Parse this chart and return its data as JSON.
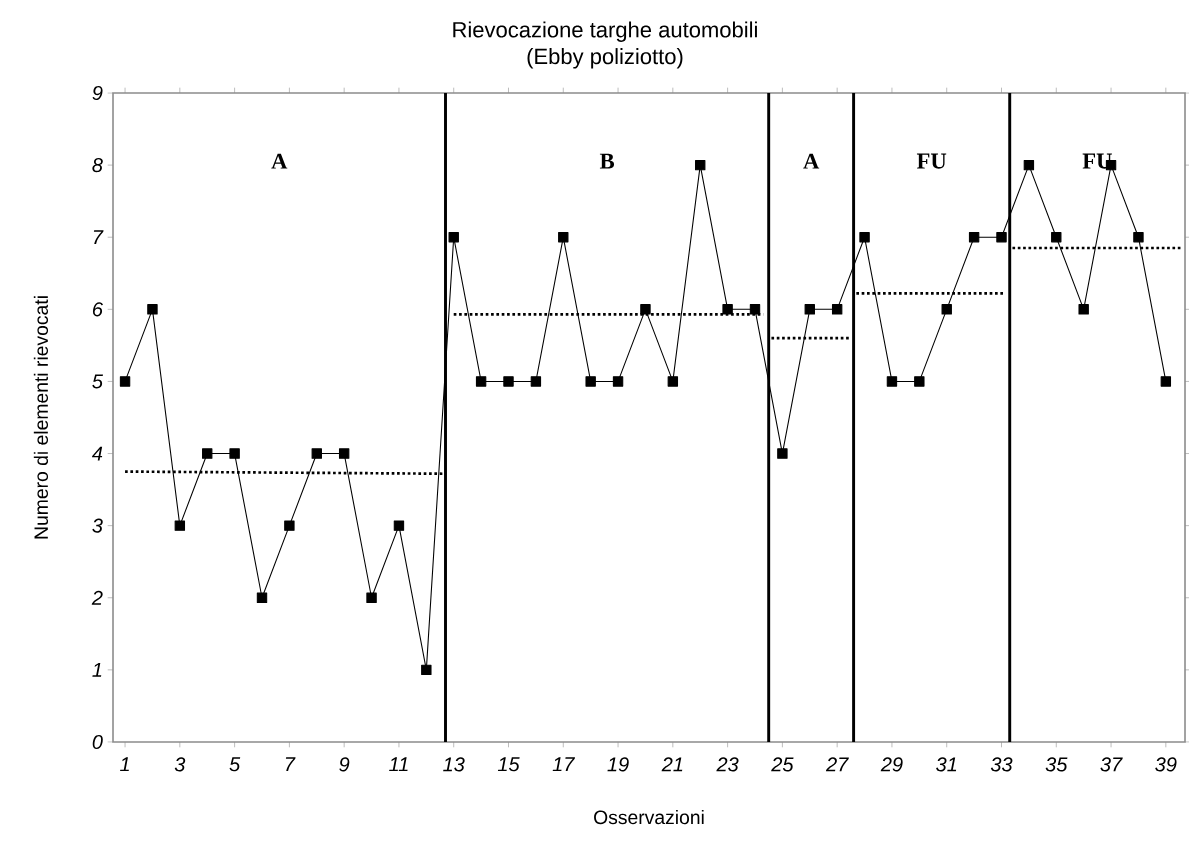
{
  "chart_data": {
    "type": "line",
    "title": "Rievocazione targhe automobili",
    "subtitle": "(Ebby poliziotto)",
    "xlabel": "Osservazioni",
    "ylabel": "Numero di elementi rievocati",
    "xlim": [
      0.56,
      39.7
    ],
    "ylim": [
      0,
      9
    ],
    "xticks": [
      1,
      3,
      5,
      7,
      9,
      11,
      13,
      15,
      17,
      19,
      21,
      23,
      25,
      27,
      29,
      31,
      33,
      35,
      37,
      39
    ],
    "yticks": [
      0,
      1,
      2,
      3,
      4,
      5,
      6,
      7,
      8,
      9
    ],
    "series": [
      {
        "color": "#000000",
        "marker": "square",
        "line_style": "solid",
        "x": [
          1,
          2,
          3,
          4,
          5,
          6,
          7,
          8,
          9,
          10,
          11,
          12,
          13,
          14,
          15,
          16,
          17,
          18,
          19,
          20,
          21,
          22,
          23,
          24,
          25,
          26,
          27,
          28,
          29,
          30,
          31,
          32,
          33,
          34,
          35,
          36,
          37,
          38,
          39
        ],
        "values": [
          5,
          6,
          3,
          4,
          4,
          2,
          3,
          4,
          4,
          2,
          3,
          1,
          7,
          5,
          5,
          5,
          7,
          5,
          5,
          6,
          5,
          8,
          6,
          6,
          4,
          6,
          6,
          7,
          5,
          5,
          6,
          7,
          7,
          8,
          7,
          6,
          8,
          7,
          5
        ]
      },
      {
        "color": "#000000",
        "marker": "none",
        "line_style": "dotted",
        "x": [
          1,
          12.7
        ],
        "values": [
          3.75,
          3.72
        ]
      },
      {
        "color": "#000000",
        "marker": "none",
        "line_style": "dotted",
        "x": [
          13,
          24.3
        ],
        "values": [
          5.93,
          5.93
        ]
      },
      {
        "color": "#000000",
        "marker": "none",
        "line_style": "dotted",
        "x": [
          24.6,
          27.5
        ],
        "values": [
          5.6,
          5.6
        ]
      },
      {
        "color": "#000000",
        "marker": "none",
        "line_style": "dotted",
        "x": [
          27.7,
          33.1
        ],
        "values": [
          6.22,
          6.22
        ]
      },
      {
        "color": "#000000",
        "marker": "none",
        "line_style": "dotted",
        "x": [
          33.4,
          39.6
        ],
        "values": [
          6.85,
          6.85
        ]
      }
    ],
    "ref_lines": [
      {
        "axis": "x",
        "value": 12.7,
        "color": "#000000",
        "line_style": "solid"
      },
      {
        "axis": "x",
        "value": 24.5,
        "color": "#000000",
        "line_style": "solid"
      },
      {
        "axis": "x",
        "value": 27.6,
        "color": "#000000",
        "line_style": "solid"
      },
      {
        "axis": "x",
        "value": 33.3,
        "color": "#000000",
        "line_style": "solid"
      }
    ],
    "annotations": [
      "A",
      "B",
      "A",
      "FU",
      "FU"
    ]
  }
}
